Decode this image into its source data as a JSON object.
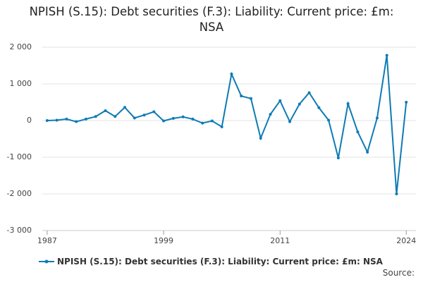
{
  "chart_data": {
    "type": "line",
    "title": "NPISH (S.15): Debt securities (F.3): Liability: Current price: £m: NSA",
    "x": [
      1987,
      1988,
      1989,
      1990,
      1991,
      1992,
      1993,
      1994,
      1995,
      1996,
      1997,
      1998,
      1999,
      2000,
      2001,
      2002,
      2003,
      2004,
      2005,
      2006,
      2007,
      2008,
      2009,
      2010,
      2011,
      2012,
      2013,
      2014,
      2015,
      2016,
      2017,
      2018,
      2019,
      2020,
      2021,
      2022,
      2023,
      2024
    ],
    "series": [
      {
        "name": "NPISH (S.15): Debt securities (F.3): Liability: Current price: £m: NSA",
        "color": "#0e7bb5",
        "values": [
          0,
          10,
          40,
          -30,
          40,
          110,
          270,
          110,
          360,
          70,
          150,
          240,
          -10,
          60,
          100,
          40,
          -70,
          -10,
          -170,
          1270,
          670,
          600,
          -480,
          170,
          540,
          -30,
          450,
          760,
          350,
          10,
          -1020,
          460,
          -310,
          -860,
          70,
          1780,
          -2000,
          500
        ]
      }
    ],
    "xlim": [
      1986.5,
      2025
    ],
    "xticks": [
      1987,
      1999,
      2011,
      2024
    ],
    "ylim": [
      -3000,
      2000
    ],
    "yticks": [
      {
        "value": -3000,
        "label": "-3 000"
      },
      {
        "value": -2000,
        "label": "-2 000"
      },
      {
        "value": -1000,
        "label": "-1 000"
      },
      0,
      {
        "value": 1000,
        "label": "1 000"
      },
      {
        "value": 2000,
        "label": "2 000"
      }
    ],
    "grid": true,
    "source": "Source:"
  }
}
